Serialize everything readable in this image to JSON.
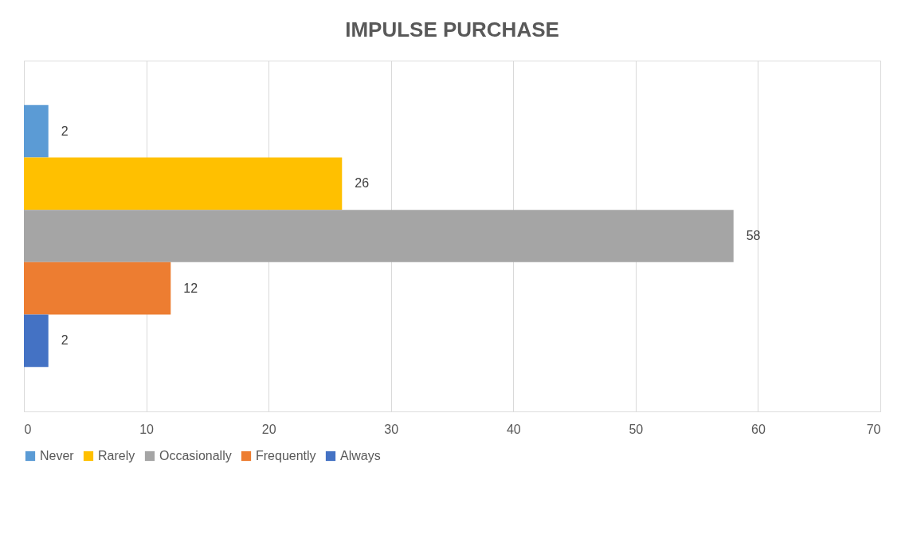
{
  "chart_data": {
    "type": "bar",
    "title": "IMPULSE PURCHASE",
    "orientation": "horizontal",
    "categories": [
      null
    ],
    "series": [
      {
        "name": "Never",
        "color": "#5b9bd5",
        "values": [
          2
        ]
      },
      {
        "name": "Rarely",
        "color": "#ffc000",
        "values": [
          26
        ]
      },
      {
        "name": "Occasionally",
        "color": "#a5a5a5",
        "values": [
          58
        ]
      },
      {
        "name": "Frequently",
        "color": "#ed7d31",
        "values": [
          12
        ]
      },
      {
        "name": "Always",
        "color": "#4472c4",
        "values": [
          2
        ]
      }
    ],
    "xlim": [
      0,
      70
    ],
    "xticks": [
      0,
      10,
      20,
      30,
      40,
      50,
      60,
      70
    ],
    "grid": "x",
    "legend": "bottom",
    "data_labels": true
  }
}
